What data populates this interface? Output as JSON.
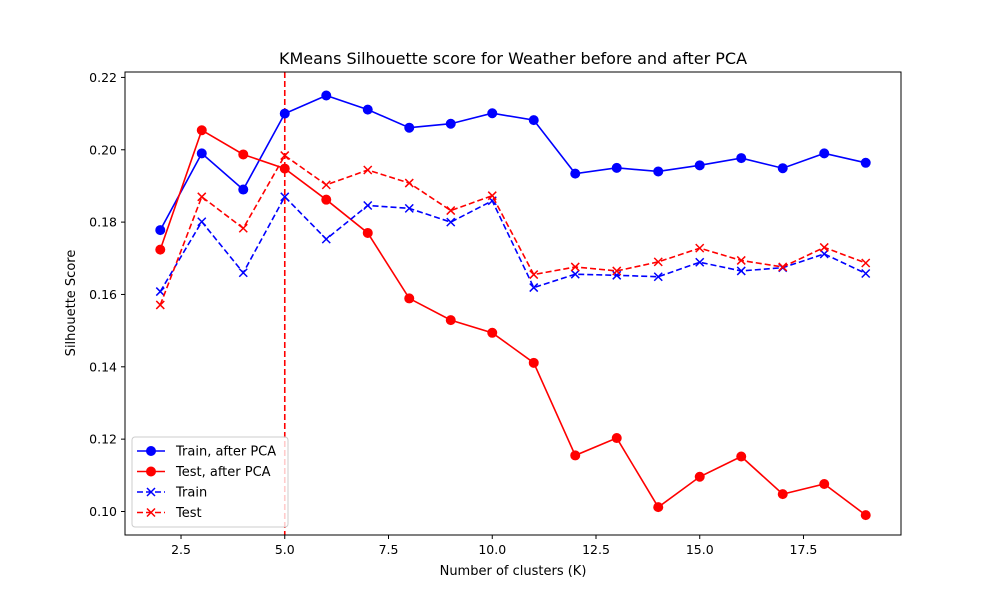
{
  "chart_data": {
    "type": "line",
    "title": "KMeans Silhouette score for Weather before and after PCA",
    "xlabel": "Number of clusters (K)",
    "ylabel": "Silhouette Score",
    "xlim": [
      1.15,
      19.85
    ],
    "ylim": [
      0.0935,
      0.2215
    ],
    "xticks": [
      2.5,
      5.0,
      7.5,
      10.0,
      12.5,
      15.0,
      17.5
    ],
    "xtick_labels": [
      "2.5",
      "5.0",
      "7.5",
      "10.0",
      "12.5",
      "15.0",
      "17.5"
    ],
    "yticks": [
      0.1,
      0.12,
      0.14,
      0.16,
      0.18,
      0.2,
      0.22
    ],
    "ytick_labels": [
      "0.10",
      "0.12",
      "0.14",
      "0.16",
      "0.18",
      "0.20",
      "0.22"
    ],
    "grid": false,
    "legend_position": "lower-left",
    "x": [
      2,
      3,
      4,
      5,
      6,
      7,
      8,
      9,
      10,
      11,
      12,
      13,
      14,
      15,
      16,
      17,
      18,
      19
    ],
    "vline": {
      "x": 5,
      "color": "#ff0000",
      "style": "dashed"
    },
    "series": [
      {
        "name": "Train, after PCA",
        "color": "#0000ff",
        "linestyle": "solid",
        "marker": "circle",
        "values": [
          0.1778,
          0.199,
          0.189,
          0.21,
          0.215,
          0.2111,
          0.2061,
          0.2072,
          0.2101,
          0.2082,
          0.1934,
          0.195,
          0.194,
          0.1957,
          0.1977,
          0.1949,
          0.199,
          0.1964
        ]
      },
      {
        "name": "Test, after PCA",
        "color": "#ff0000",
        "linestyle": "solid",
        "marker": "circle",
        "values": [
          0.1724,
          0.2054,
          0.1987,
          0.1948,
          0.1862,
          0.177,
          0.1589,
          0.1529,
          0.1494,
          0.1411,
          0.1155,
          0.1203,
          0.1012,
          0.1096,
          0.1152,
          0.1048,
          0.1076,
          0.099
        ]
      },
      {
        "name": "Train",
        "color": "#0000ff",
        "linestyle": "dashed",
        "marker": "x",
        "values": [
          0.1608,
          0.1801,
          0.166,
          0.187,
          0.1753,
          0.1846,
          0.1838,
          0.18,
          0.1859,
          0.1619,
          0.1656,
          0.1653,
          0.1649,
          0.1689,
          0.1665,
          0.1674,
          0.1712,
          0.1658
        ]
      },
      {
        "name": "Test",
        "color": "#ff0000",
        "linestyle": "dashed",
        "marker": "x",
        "values": [
          0.1571,
          0.187,
          0.1783,
          0.1984,
          0.1903,
          0.1944,
          0.1908,
          0.1832,
          0.1873,
          0.1655,
          0.1676,
          0.1665,
          0.169,
          0.1728,
          0.1694,
          0.1676,
          0.173,
          0.1687
        ]
      }
    ]
  }
}
